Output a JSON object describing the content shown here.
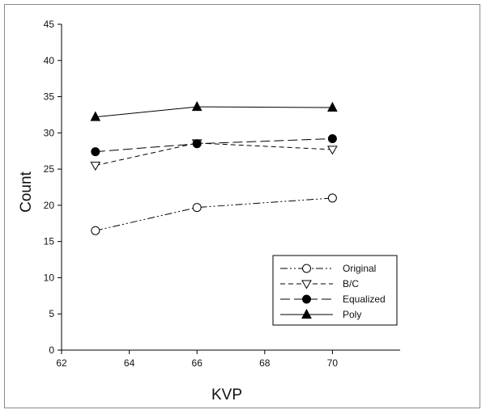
{
  "chart_data": {
    "type": "line",
    "title": "",
    "xlabel": "KVP",
    "ylabel": "Count",
    "xlim": [
      62,
      72
    ],
    "ylim": [
      0,
      45
    ],
    "x_ticks": [
      "62",
      "64",
      "66",
      "68",
      "70"
    ],
    "y_ticks": [
      "0",
      "5",
      "10",
      "15",
      "20",
      "25",
      "30",
      "35",
      "40",
      "45"
    ],
    "grid": false,
    "legend_position": "bottom-right",
    "x": [
      63,
      66,
      70
    ],
    "series": [
      {
        "name": "Original",
        "values": [
          16.5,
          19.7,
          21.0
        ],
        "marker": "open-circle",
        "line_style": "dash-dot-dot",
        "color": "#000000"
      },
      {
        "name": "B/C",
        "values": [
          25.5,
          28.6,
          27.7
        ],
        "marker": "open-triangle-down",
        "line_style": "short-dash",
        "color": "#000000"
      },
      {
        "name": "Equalized",
        "values": [
          27.4,
          28.5,
          29.2
        ],
        "marker": "filled-circle",
        "line_style": "long-dash",
        "color": "#000000"
      },
      {
        "name": "Poly",
        "values": [
          32.2,
          33.6,
          33.5
        ],
        "marker": "filled-triangle-up",
        "line_style": "solid",
        "color": "#000000"
      }
    ]
  }
}
